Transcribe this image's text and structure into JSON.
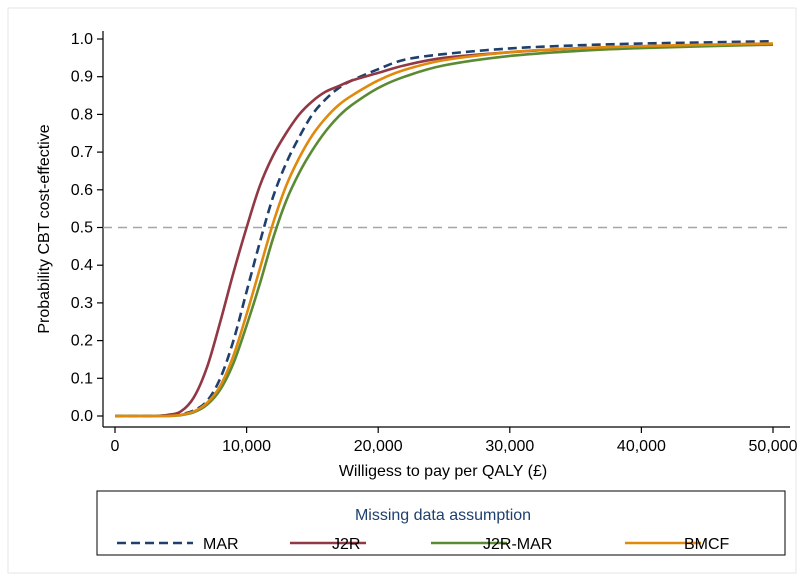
{
  "chart_data": {
    "type": "line",
    "title": "",
    "xlabel": "Willigess to pay per QALY (£)",
    "ylabel": "Probability CBT cost-effective",
    "xlim": [
      0,
      50000
    ],
    "ylim": [
      0,
      1
    ],
    "x_ticks": [
      0,
      10000,
      20000,
      30000,
      40000,
      50000
    ],
    "x_tick_labels": [
      "0",
      "10,000",
      "20,000",
      "30,000",
      "40,000",
      "50,000"
    ],
    "y_ticks": [
      0,
      0.1,
      0.2,
      0.3,
      0.4,
      0.5,
      0.6,
      0.7,
      0.8,
      0.9,
      1.0
    ],
    "y_tick_labels": [
      "0.0",
      "0.1",
      "0.2",
      "0.3",
      "0.4",
      "0.5",
      "0.6",
      "0.7",
      "0.8",
      "0.9",
      "1.0"
    ],
    "reference_line": {
      "y": 0.5,
      "style": "dashed",
      "color": "#a6a6a6"
    },
    "grid": false,
    "legend": {
      "title": "Missing data assumption",
      "placement": "bottom",
      "entries": [
        "MAR",
        "J2R",
        "J2R-MAR",
        "BMCF"
      ]
    },
    "x": [
      0,
      1000,
      2000,
      3000,
      4000,
      5000,
      6000,
      7000,
      8000,
      9000,
      10000,
      11000,
      12000,
      13000,
      14000,
      15000,
      16000,
      17000,
      18000,
      20000,
      22000,
      25000,
      30000,
      35000,
      40000,
      45000,
      50000
    ],
    "series": [
      {
        "name": "MAR",
        "color": "#1f3f6e",
        "dash": "dashed",
        "values": [
          0,
          0,
          0,
          0,
          0.002,
          0.005,
          0.015,
          0.04,
          0.1,
          0.2,
          0.33,
          0.46,
          0.58,
          0.67,
          0.74,
          0.8,
          0.84,
          0.87,
          0.89,
          0.92,
          0.945,
          0.96,
          0.975,
          0.983,
          0.988,
          0.991,
          0.994
        ]
      },
      {
        "name": "J2R",
        "color": "#913844",
        "dash": "solid",
        "values": [
          0,
          0,
          0,
          0,
          0.003,
          0.012,
          0.05,
          0.13,
          0.25,
          0.38,
          0.5,
          0.61,
          0.69,
          0.75,
          0.8,
          0.835,
          0.86,
          0.875,
          0.89,
          0.91,
          0.93,
          0.95,
          0.965,
          0.975,
          0.98,
          0.983,
          0.986
        ]
      },
      {
        "name": "J2R-MAR",
        "color": "#5a8a33",
        "dash": "solid",
        "values": [
          0,
          0,
          0,
          0,
          0,
          0.002,
          0.01,
          0.03,
          0.07,
          0.14,
          0.24,
          0.35,
          0.47,
          0.57,
          0.645,
          0.705,
          0.755,
          0.795,
          0.825,
          0.87,
          0.9,
          0.93,
          0.955,
          0.968,
          0.976,
          0.981,
          0.985
        ]
      },
      {
        "name": "BMCF",
        "color": "#e0890c",
        "dash": "solid",
        "values": [
          0,
          0,
          0,
          0,
          0,
          0.003,
          0.012,
          0.035,
          0.08,
          0.16,
          0.27,
          0.39,
          0.51,
          0.61,
          0.685,
          0.745,
          0.79,
          0.825,
          0.85,
          0.89,
          0.918,
          0.944,
          0.965,
          0.975,
          0.981,
          0.985,
          0.988
        ]
      }
    ]
  }
}
